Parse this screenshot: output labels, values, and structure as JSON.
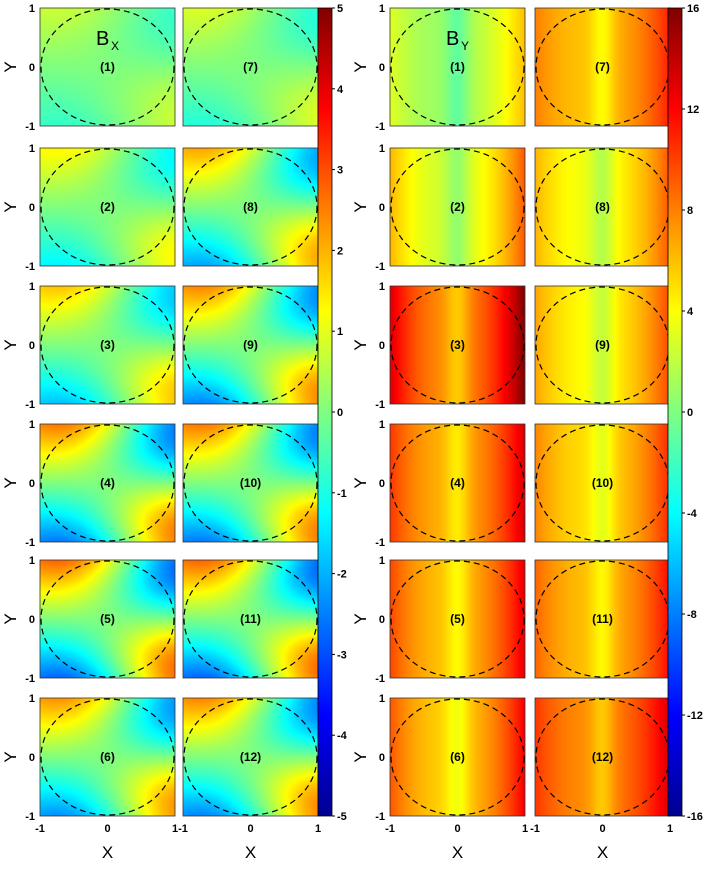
{
  "chart_data": [
    {
      "type": "heatmap",
      "field": "Bx",
      "title_main": "B",
      "title_sub": "X",
      "xlabel": "X",
      "ylabel": "Y",
      "xlim": [
        -1,
        1
      ],
      "ylim": [
        -1,
        1
      ],
      "x_ticks": [
        "-1",
        "0",
        "1"
      ],
      "y_ticks": [
        "1",
        "0",
        "-1"
      ],
      "colorbar": {
        "range": [
          -5,
          5
        ],
        "ticks": [
          "5",
          "4",
          "3",
          "2",
          "1",
          "0",
          "-1",
          "-2",
          "-3",
          "-4",
          "-5"
        ]
      },
      "panels": [
        {
          "label": "(1)",
          "a": 1.2,
          "c": 0.0
        },
        {
          "label": "(2)",
          "a": 2.2,
          "c": 0.0
        },
        {
          "label": "(3)",
          "a": 3.0,
          "c": 0.0
        },
        {
          "label": "(4)",
          "a": 4.2,
          "c": 0.0
        },
        {
          "label": "(5)",
          "a": 4.5,
          "c": 0.0
        },
        {
          "label": "(6)",
          "a": 3.8,
          "c": 0.0
        },
        {
          "label": "(7)",
          "a": 1.5,
          "c": 0.0
        },
        {
          "label": "(8)",
          "a": 3.5,
          "c": 0.0
        },
        {
          "label": "(9)",
          "a": 4.0,
          "c": 0.0
        },
        {
          "label": "(10)",
          "a": 4.2,
          "c": 0.0
        },
        {
          "label": "(11)",
          "a": 4.5,
          "c": 0.0
        },
        {
          "label": "(12)",
          "a": 4.0,
          "c": 0.0
        }
      ]
    },
    {
      "type": "heatmap",
      "field": "By",
      "title_main": "B",
      "title_sub": "Y",
      "xlabel": "X",
      "ylabel": "Y",
      "xlim": [
        -1,
        1
      ],
      "ylim": [
        -1,
        1
      ],
      "x_ticks": [
        "-1",
        "0",
        "1"
      ],
      "y_ticks": [
        "1",
        "0",
        "-1"
      ],
      "colorbar": {
        "range": [
          -16,
          16
        ],
        "ticks": [
          "16",
          "12",
          "8",
          "4",
          "0",
          "-4",
          "-8",
          "-12",
          "-16"
        ]
      },
      "panels": [
        {
          "label": "(1)",
          "a": 1.0,
          "c": 3.0
        },
        {
          "label": "(2)",
          "a": 1.5,
          "c": 5.5
        },
        {
          "label": "(3)",
          "a": 2.0,
          "c": 11.5
        },
        {
          "label": "(4)",
          "a": 1.5,
          "c": 9.5
        },
        {
          "label": "(5)",
          "a": 1.5,
          "c": 9.0
        },
        {
          "label": "(6)",
          "a": 1.5,
          "c": 8.5
        },
        {
          "label": "(7)",
          "a": 1.0,
          "c": 8.0
        },
        {
          "label": "(8)",
          "a": 1.2,
          "c": 6.0
        },
        {
          "label": "(9)",
          "a": 1.2,
          "c": 6.5
        },
        {
          "label": "(10)",
          "a": 1.2,
          "c": 7.5
        },
        {
          "label": "(11)",
          "a": 1.2,
          "c": 8.5
        },
        {
          "label": "(12)",
          "a": 1.2,
          "c": 10.0
        }
      ]
    }
  ]
}
